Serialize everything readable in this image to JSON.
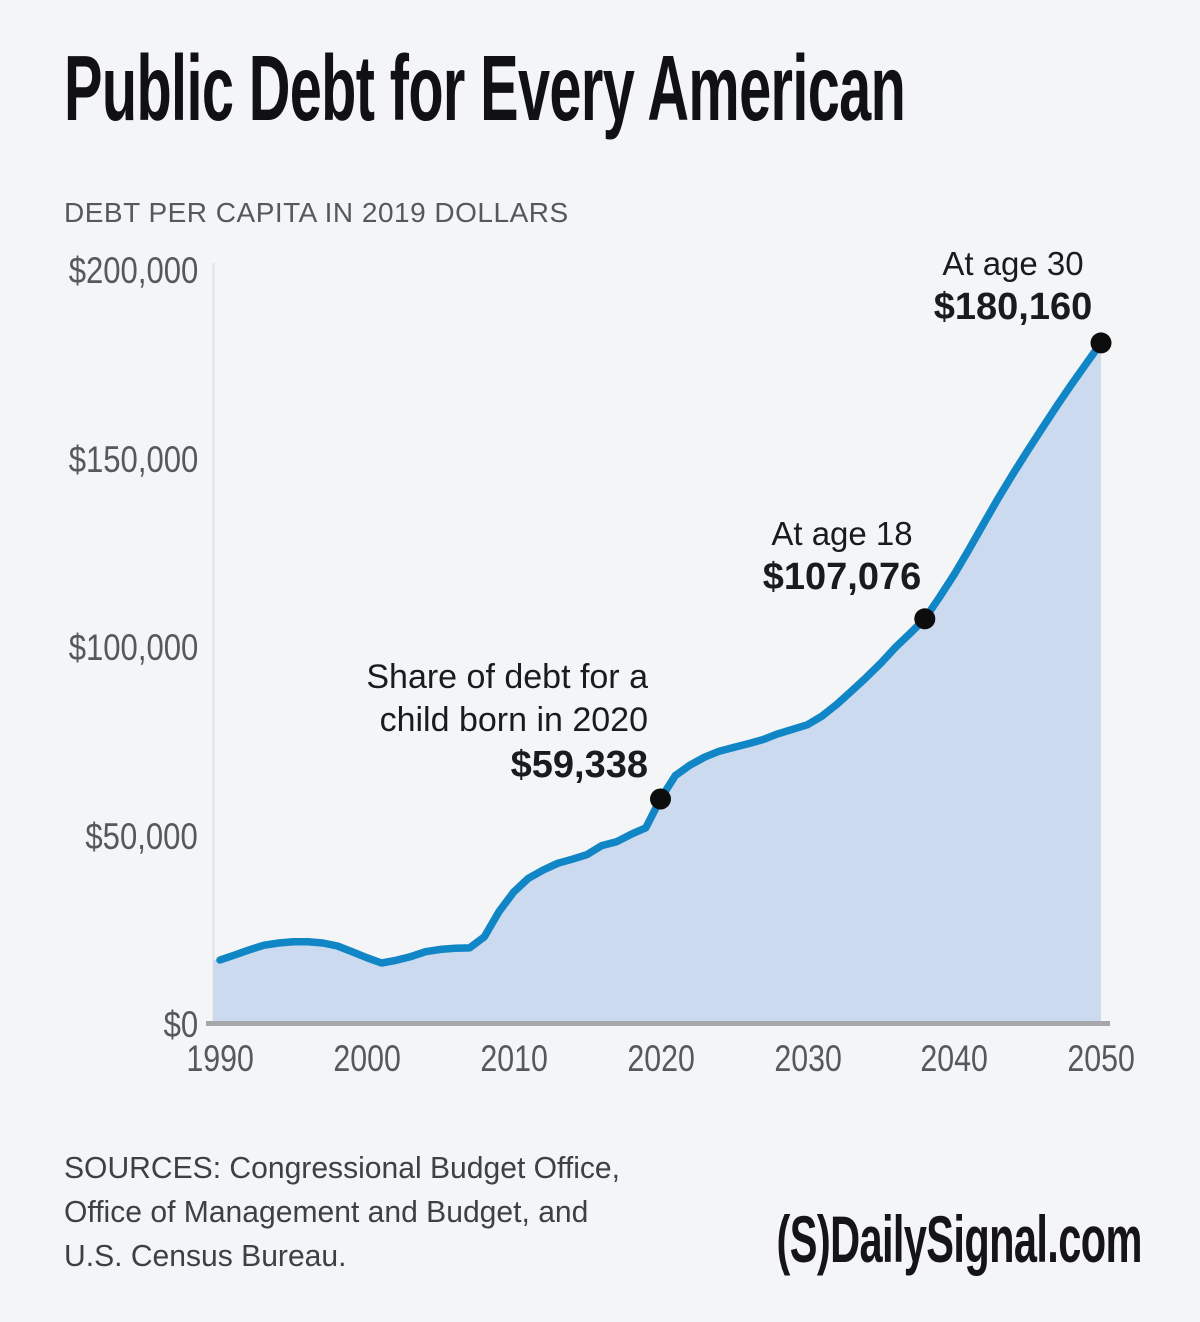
{
  "page": {
    "background": "#f4f5f6"
  },
  "header": {
    "title": "Public Debt for Every American",
    "subtitle": "DEBT PER CAPITA IN 2019 DOLLARS"
  },
  "colors": {
    "title_text": "#111113",
    "muted_text": "#57585b",
    "annotation_text": "#1a1b1d",
    "sources_text": "#3f4043",
    "logo_text": "#151517"
  },
  "chart_data": {
    "type": "area",
    "title": "Public Debt for Every American",
    "subtitle": "DEBT PER CAPITA IN 2019 DOLLARS",
    "xlabel": "",
    "ylabel": "Debt per capita in 2019 dollars",
    "xlim": [
      1990,
      2050
    ],
    "ylim": [
      0,
      200000
    ],
    "grid": false,
    "legend": "none",
    "line_color": "#1086c6",
    "fill_color": "#cbdaee",
    "dot_color": "#0d0d0e",
    "axis_line_color": "#e0e1e4",
    "baseline_color": "#a5a7aa",
    "x_ticks": [
      1990,
      2000,
      2010,
      2020,
      2030,
      2040,
      2050
    ],
    "x_tick_labels": [
      "1990",
      "2000",
      "2010",
      "2020",
      "2030",
      "2040",
      "2050"
    ],
    "y_ticks": [
      200000,
      150000,
      100000,
      50000,
      0
    ],
    "y_tick_labels": [
      "$200,000",
      "$150,000",
      "$100,000",
      "$50,000",
      "$0"
    ],
    "series": [
      {
        "name": "Public debt per capita (2019 dollars)",
        "x": [
          1990,
          1991,
          1992,
          1993,
          1994,
          1995,
          1996,
          1997,
          1998,
          1999,
          2000,
          2001,
          2002,
          2003,
          2004,
          2005,
          2006,
          2007,
          2008,
          2009,
          2010,
          2011,
          2012,
          2013,
          2014,
          2015,
          2016,
          2017,
          2018,
          2019,
          2020,
          2021,
          2022,
          2023,
          2024,
          2025,
          2026,
          2027,
          2028,
          2029,
          2030,
          2031,
          2032,
          2033,
          2034,
          2035,
          2036,
          2037,
          2038,
          2039,
          2040,
          2041,
          2042,
          2043,
          2044,
          2045,
          2046,
          2047,
          2048,
          2049,
          2050
        ],
        "values": [
          16700,
          18000,
          19400,
          20600,
          21200,
          21500,
          21500,
          21200,
          20400,
          18900,
          17300,
          15900,
          16600,
          17600,
          18900,
          19500,
          19800,
          19900,
          22800,
          29500,
          34700,
          38300,
          40500,
          42300,
          43400,
          44600,
          47000,
          48000,
          50000,
          51700,
          59338,
          65500,
          68300,
          70400,
          72000,
          73000,
          74000,
          75100,
          76600,
          77800,
          79000,
          81300,
          84400,
          87900,
          91500,
          95300,
          99500,
          103200,
          107076,
          112800,
          118800,
          125400,
          132200,
          139000,
          145400,
          151600,
          157600,
          163500,
          169200,
          174700,
          180160
        ]
      }
    ],
    "annotations": {
      "child_2020": {
        "line1": "Share of debt for a",
        "line2": "child born in 2020",
        "value_label": "$59,338",
        "x": 2020,
        "y": 59338
      },
      "age_18": {
        "label": "At age 18",
        "value_label": "$107,076",
        "x": 2038,
        "y": 107076
      },
      "age_30": {
        "label": "At age 30",
        "value_label": "$180,160",
        "x": 2050,
        "y": 180160
      }
    }
  },
  "footer": {
    "sources_lines": [
      "SOURCES: Congressional Budget Office,",
      "Office of Management and Budget, and",
      "U.S. Census Bureau."
    ],
    "logo_prefix": "(S)",
    "logo_text": "DailySignal.com"
  }
}
